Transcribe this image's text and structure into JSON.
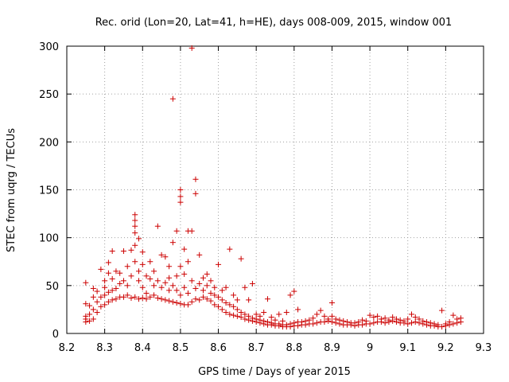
{
  "chart_data": {
    "type": "scatter",
    "title": "Rec. orid (Lon=20, Lat=41, h=HE), days 008-009, 2015, window 001",
    "xlabel": "GPS time / Days of year 2015",
    "ylabel": "STEC from uqrg / TECUs",
    "xlim": [
      8.2,
      9.3
    ],
    "ylim": [
      0,
      300
    ],
    "xticks": [
      "8.2",
      "8.3",
      "8.4",
      "8.5",
      "8.6",
      "8.7",
      "8.8",
      "8.9",
      "9",
      "9.1",
      "9.2",
      "9.3"
    ],
    "yticks": [
      "0",
      "50",
      "100",
      "150",
      "200",
      "250",
      "300"
    ],
    "grid": true,
    "marker": "+",
    "color": "#cc0000",
    "points": [
      [
        8.25,
        12
      ],
      [
        8.25,
        15
      ],
      [
        8.25,
        18
      ],
      [
        8.25,
        31
      ],
      [
        8.25,
        53
      ],
      [
        8.26,
        13
      ],
      [
        8.26,
        20
      ],
      [
        8.26,
        29
      ],
      [
        8.27,
        15
      ],
      [
        8.27,
        25
      ],
      [
        8.27,
        47
      ],
      [
        8.27,
        38
      ],
      [
        8.28,
        22
      ],
      [
        8.28,
        33
      ],
      [
        8.28,
        44
      ],
      [
        8.29,
        67
      ],
      [
        8.29,
        28
      ],
      [
        8.29,
        38
      ],
      [
        8.3,
        30
      ],
      [
        8.3,
        40
      ],
      [
        8.3,
        48
      ],
      [
        8.3,
        55
      ],
      [
        8.31,
        33
      ],
      [
        8.31,
        43
      ],
      [
        8.31,
        63
      ],
      [
        8.31,
        74
      ],
      [
        8.32,
        35
      ],
      [
        8.32,
        45
      ],
      [
        8.32,
        57
      ],
      [
        8.32,
        86
      ],
      [
        8.33,
        36
      ],
      [
        8.33,
        47
      ],
      [
        8.33,
        65
      ],
      [
        8.34,
        38
      ],
      [
        8.34,
        52
      ],
      [
        8.34,
        63
      ],
      [
        8.35,
        38
      ],
      [
        8.35,
        55
      ],
      [
        8.35,
        86
      ],
      [
        8.36,
        40
      ],
      [
        8.36,
        50
      ],
      [
        8.36,
        70
      ],
      [
        8.37,
        37
      ],
      [
        8.37,
        60
      ],
      [
        8.37,
        87
      ],
      [
        8.38,
        38
      ],
      [
        8.38,
        105
      ],
      [
        8.38,
        112
      ],
      [
        8.38,
        118
      ],
      [
        8.38,
        124
      ],
      [
        8.38,
        92
      ],
      [
        8.38,
        75
      ],
      [
        8.39,
        36
      ],
      [
        8.39,
        55
      ],
      [
        8.39,
        65
      ],
      [
        8.39,
        99
      ],
      [
        8.4,
        37
      ],
      [
        8.4,
        48
      ],
      [
        8.4,
        72
      ],
      [
        8.4,
        85
      ],
      [
        8.41,
        36
      ],
      [
        8.41,
        42
      ],
      [
        8.41,
        60
      ],
      [
        8.42,
        38
      ],
      [
        8.42,
        57
      ],
      [
        8.42,
        75
      ],
      [
        8.43,
        40
      ],
      [
        8.43,
        50
      ],
      [
        8.43,
        65
      ],
      [
        8.44,
        37
      ],
      [
        8.44,
        55
      ],
      [
        8.44,
        112
      ],
      [
        8.45,
        36
      ],
      [
        8.45,
        48
      ],
      [
        8.45,
        82
      ],
      [
        8.46,
        35
      ],
      [
        8.46,
        53
      ],
      [
        8.46,
        80
      ],
      [
        8.47,
        34
      ],
      [
        8.47,
        45
      ],
      [
        8.47,
        58
      ],
      [
        8.47,
        70
      ],
      [
        8.48,
        33
      ],
      [
        8.48,
        50
      ],
      [
        8.48,
        95
      ],
      [
        8.48,
        245
      ],
      [
        8.49,
        32
      ],
      [
        8.49,
        45
      ],
      [
        8.49,
        107
      ],
      [
        8.49,
        60
      ],
      [
        8.5,
        31
      ],
      [
        8.5,
        40
      ],
      [
        8.5,
        70
      ],
      [
        8.5,
        137
      ],
      [
        8.5,
        143
      ],
      [
        8.5,
        150
      ],
      [
        8.51,
        30
      ],
      [
        8.51,
        48
      ],
      [
        8.51,
        62
      ],
      [
        8.51,
        88
      ],
      [
        8.52,
        30
      ],
      [
        8.52,
        42
      ],
      [
        8.52,
        75
      ],
      [
        8.52,
        107
      ],
      [
        8.53,
        298
      ],
      [
        8.53,
        33
      ],
      [
        8.53,
        55
      ],
      [
        8.53,
        107
      ],
      [
        8.54,
        36
      ],
      [
        8.54,
        47
      ],
      [
        8.54,
        146
      ],
      [
        8.54,
        161
      ],
      [
        8.55,
        35
      ],
      [
        8.55,
        52
      ],
      [
        8.55,
        82
      ],
      [
        8.56,
        38
      ],
      [
        8.56,
        45
      ],
      [
        8.56,
        58
      ],
      [
        8.57,
        36
      ],
      [
        8.57,
        50
      ],
      [
        8.57,
        62
      ],
      [
        8.58,
        34
      ],
      [
        8.58,
        42
      ],
      [
        8.58,
        55
      ],
      [
        8.59,
        30
      ],
      [
        8.59,
        40
      ],
      [
        8.59,
        48
      ],
      [
        8.6,
        28
      ],
      [
        8.6,
        38
      ],
      [
        8.6,
        72
      ],
      [
        8.61,
        25
      ],
      [
        8.61,
        35
      ],
      [
        8.61,
        45
      ],
      [
        8.62,
        22
      ],
      [
        8.62,
        32
      ],
      [
        8.62,
        48
      ],
      [
        8.63,
        20
      ],
      [
        8.63,
        30
      ],
      [
        8.63,
        88
      ],
      [
        8.64,
        19
      ],
      [
        8.64,
        28
      ],
      [
        8.64,
        40
      ],
      [
        8.65,
        18
      ],
      [
        8.65,
        25
      ],
      [
        8.65,
        35
      ],
      [
        8.66,
        17
      ],
      [
        8.66,
        22
      ],
      [
        8.66,
        78
      ],
      [
        8.67,
        15
      ],
      [
        8.67,
        20
      ],
      [
        8.67,
        48
      ],
      [
        8.68,
        14
      ],
      [
        8.68,
        18
      ],
      [
        8.68,
        35
      ],
      [
        8.69,
        13
      ],
      [
        8.69,
        16
      ],
      [
        8.69,
        52
      ],
      [
        8.7,
        12
      ],
      [
        8.7,
        15
      ],
      [
        8.7,
        20
      ],
      [
        8.71,
        11
      ],
      [
        8.71,
        14
      ],
      [
        8.71,
        18
      ],
      [
        8.72,
        10
      ],
      [
        8.72,
        13
      ],
      [
        8.72,
        22
      ],
      [
        8.73,
        9
      ],
      [
        8.73,
        12
      ],
      [
        8.73,
        36
      ],
      [
        8.74,
        9
      ],
      [
        8.74,
        11
      ],
      [
        8.74,
        17
      ],
      [
        8.75,
        8
      ],
      [
        8.75,
        10
      ],
      [
        8.75,
        14
      ],
      [
        8.76,
        8
      ],
      [
        8.76,
        10
      ],
      [
        8.76,
        20
      ],
      [
        8.77,
        7
      ],
      [
        8.77,
        9
      ],
      [
        8.77,
        13
      ],
      [
        8.78,
        7
      ],
      [
        8.78,
        9
      ],
      [
        8.78,
        22
      ],
      [
        8.79,
        7
      ],
      [
        8.79,
        10
      ],
      [
        8.79,
        40
      ],
      [
        8.8,
        8
      ],
      [
        8.8,
        11
      ],
      [
        8.8,
        44
      ],
      [
        8.81,
        8
      ],
      [
        8.81,
        12
      ],
      [
        8.81,
        25
      ],
      [
        8.82,
        9
      ],
      [
        8.82,
        12
      ],
      [
        8.83,
        9
      ],
      [
        8.83,
        13
      ],
      [
        8.84,
        10
      ],
      [
        8.84,
        14
      ],
      [
        8.85,
        10
      ],
      [
        8.85,
        16
      ],
      [
        8.86,
        11
      ],
      [
        8.86,
        20
      ],
      [
        8.87,
        12
      ],
      [
        8.87,
        24
      ],
      [
        8.88,
        12
      ],
      [
        8.88,
        18
      ],
      [
        8.89,
        13
      ],
      [
        8.89,
        15
      ],
      [
        8.9,
        12
      ],
      [
        8.9,
        18
      ],
      [
        8.9,
        32
      ],
      [
        8.91,
        11
      ],
      [
        8.91,
        15
      ],
      [
        8.92,
        10
      ],
      [
        8.92,
        14
      ],
      [
        8.93,
        9
      ],
      [
        8.93,
        13
      ],
      [
        8.94,
        9
      ],
      [
        8.94,
        12
      ],
      [
        8.95,
        9
      ],
      [
        8.95,
        11
      ],
      [
        8.96,
        8
      ],
      [
        8.96,
        11
      ],
      [
        8.97,
        9
      ],
      [
        8.97,
        12
      ],
      [
        8.98,
        9
      ],
      [
        8.98,
        14
      ],
      [
        8.99,
        10
      ],
      [
        8.99,
        13
      ],
      [
        9.0,
        10
      ],
      [
        9.0,
        19
      ],
      [
        9.01,
        11
      ],
      [
        9.01,
        17
      ],
      [
        9.02,
        12
      ],
      [
        9.02,
        18
      ],
      [
        9.03,
        12
      ],
      [
        9.03,
        15
      ],
      [
        9.04,
        11
      ],
      [
        9.04,
        16
      ],
      [
        9.05,
        12
      ],
      [
        9.05,
        14
      ],
      [
        9.06,
        13
      ],
      [
        9.06,
        17
      ],
      [
        9.07,
        12
      ],
      [
        9.07,
        15
      ],
      [
        9.08,
        11
      ],
      [
        9.08,
        14
      ],
      [
        9.09,
        11
      ],
      [
        9.09,
        13
      ],
      [
        9.1,
        10
      ],
      [
        9.1,
        15
      ],
      [
        9.11,
        11
      ],
      [
        9.11,
        20
      ],
      [
        9.12,
        12
      ],
      [
        9.12,
        17
      ],
      [
        9.13,
        11
      ],
      [
        9.13,
        15
      ],
      [
        9.14,
        10
      ],
      [
        9.14,
        13
      ],
      [
        9.15,
        9
      ],
      [
        9.15,
        12
      ],
      [
        9.16,
        8
      ],
      [
        9.16,
        11
      ],
      [
        9.17,
        8
      ],
      [
        9.17,
        10
      ],
      [
        9.18,
        7
      ],
      [
        9.18,
        9
      ],
      [
        9.19,
        7
      ],
      [
        9.19,
        24
      ],
      [
        9.2,
        8
      ],
      [
        9.2,
        10
      ],
      [
        9.21,
        9
      ],
      [
        9.21,
        12
      ],
      [
        9.22,
        10
      ],
      [
        9.22,
        19
      ],
      [
        9.23,
        11
      ],
      [
        9.23,
        15
      ],
      [
        9.24,
        12
      ],
      [
        9.24,
        16
      ]
    ]
  }
}
